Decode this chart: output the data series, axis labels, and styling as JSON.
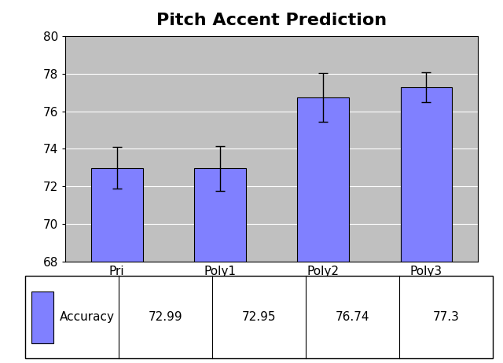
{
  "title": "Pitch Accent Prediction",
  "categories": [
    "Pri",
    "Poly1",
    "Poly2",
    "Poly3"
  ],
  "values": [
    72.99,
    72.95,
    76.74,
    77.3
  ],
  "errors": [
    1.1,
    1.2,
    1.3,
    0.8
  ],
  "bar_color": "#8080FF",
  "bar_edgecolor": "#000000",
  "ylim": [
    68,
    80
  ],
  "yticks": [
    68,
    70,
    72,
    74,
    76,
    78,
    80
  ],
  "legend_label": "Accuracy",
  "legend_values": [
    "72.99",
    "72.95",
    "76.74",
    "77.3"
  ],
  "plot_bg_color": "#C0C0C0",
  "fig_bg_color": "#FFFFFF",
  "title_fontsize": 16,
  "tick_fontsize": 11,
  "legend_fontsize": 11,
  "table_fontsize": 11
}
